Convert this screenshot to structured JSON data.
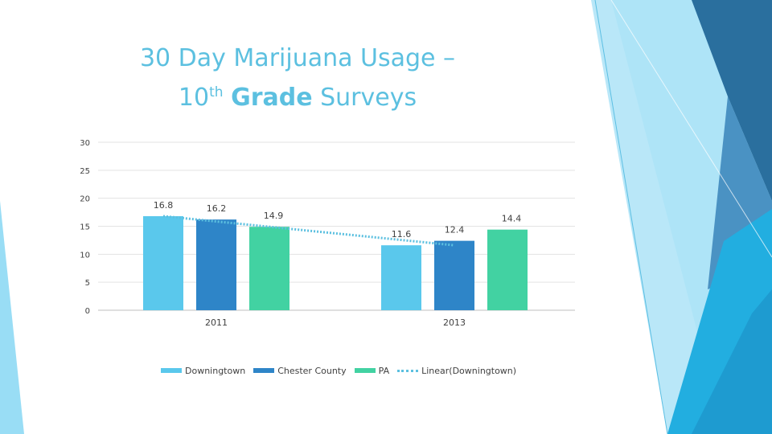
{
  "slide": {
    "title_line1": "30 Day Marijuana Usage –",
    "title_line2_number": "10",
    "title_line2_suffix": "th",
    "title_line2_bold": "Grade",
    "title_line2_rest": "Surveys"
  },
  "colors": {
    "downingtown": "#5ac8ec",
    "chester_county": "#2e85c8",
    "pa": "#42d2a2",
    "title": "#5cc0e0",
    "decor_light": "#7fd4f2",
    "decor_mid": "#3aa8d8",
    "decor_dark": "#2a6f9e"
  },
  "chart_data": {
    "type": "bar",
    "categories": [
      "2011",
      "2013"
    ],
    "series": [
      {
        "name": "Downingtown",
        "values": [
          16.8,
          11.6
        ],
        "labels": [
          "16.8",
          "11.6"
        ]
      },
      {
        "name": "Chester County",
        "values": [
          16.2,
          12.4
        ],
        "labels": [
          "16.2",
          "12.4"
        ]
      },
      {
        "name": "PA",
        "values": [
          14.9,
          14.4
        ],
        "labels": [
          "14.9",
          "14.4"
        ]
      }
    ],
    "trendline": {
      "name": "Linear(Downingtown)",
      "of_series": "Downingtown",
      "style": "dotted"
    },
    "ylim": [
      0,
      30
    ],
    "yticks": [
      "0",
      "5",
      "10",
      "15",
      "20",
      "25",
      "30"
    ],
    "grid": true,
    "legend_position": "bottom"
  }
}
